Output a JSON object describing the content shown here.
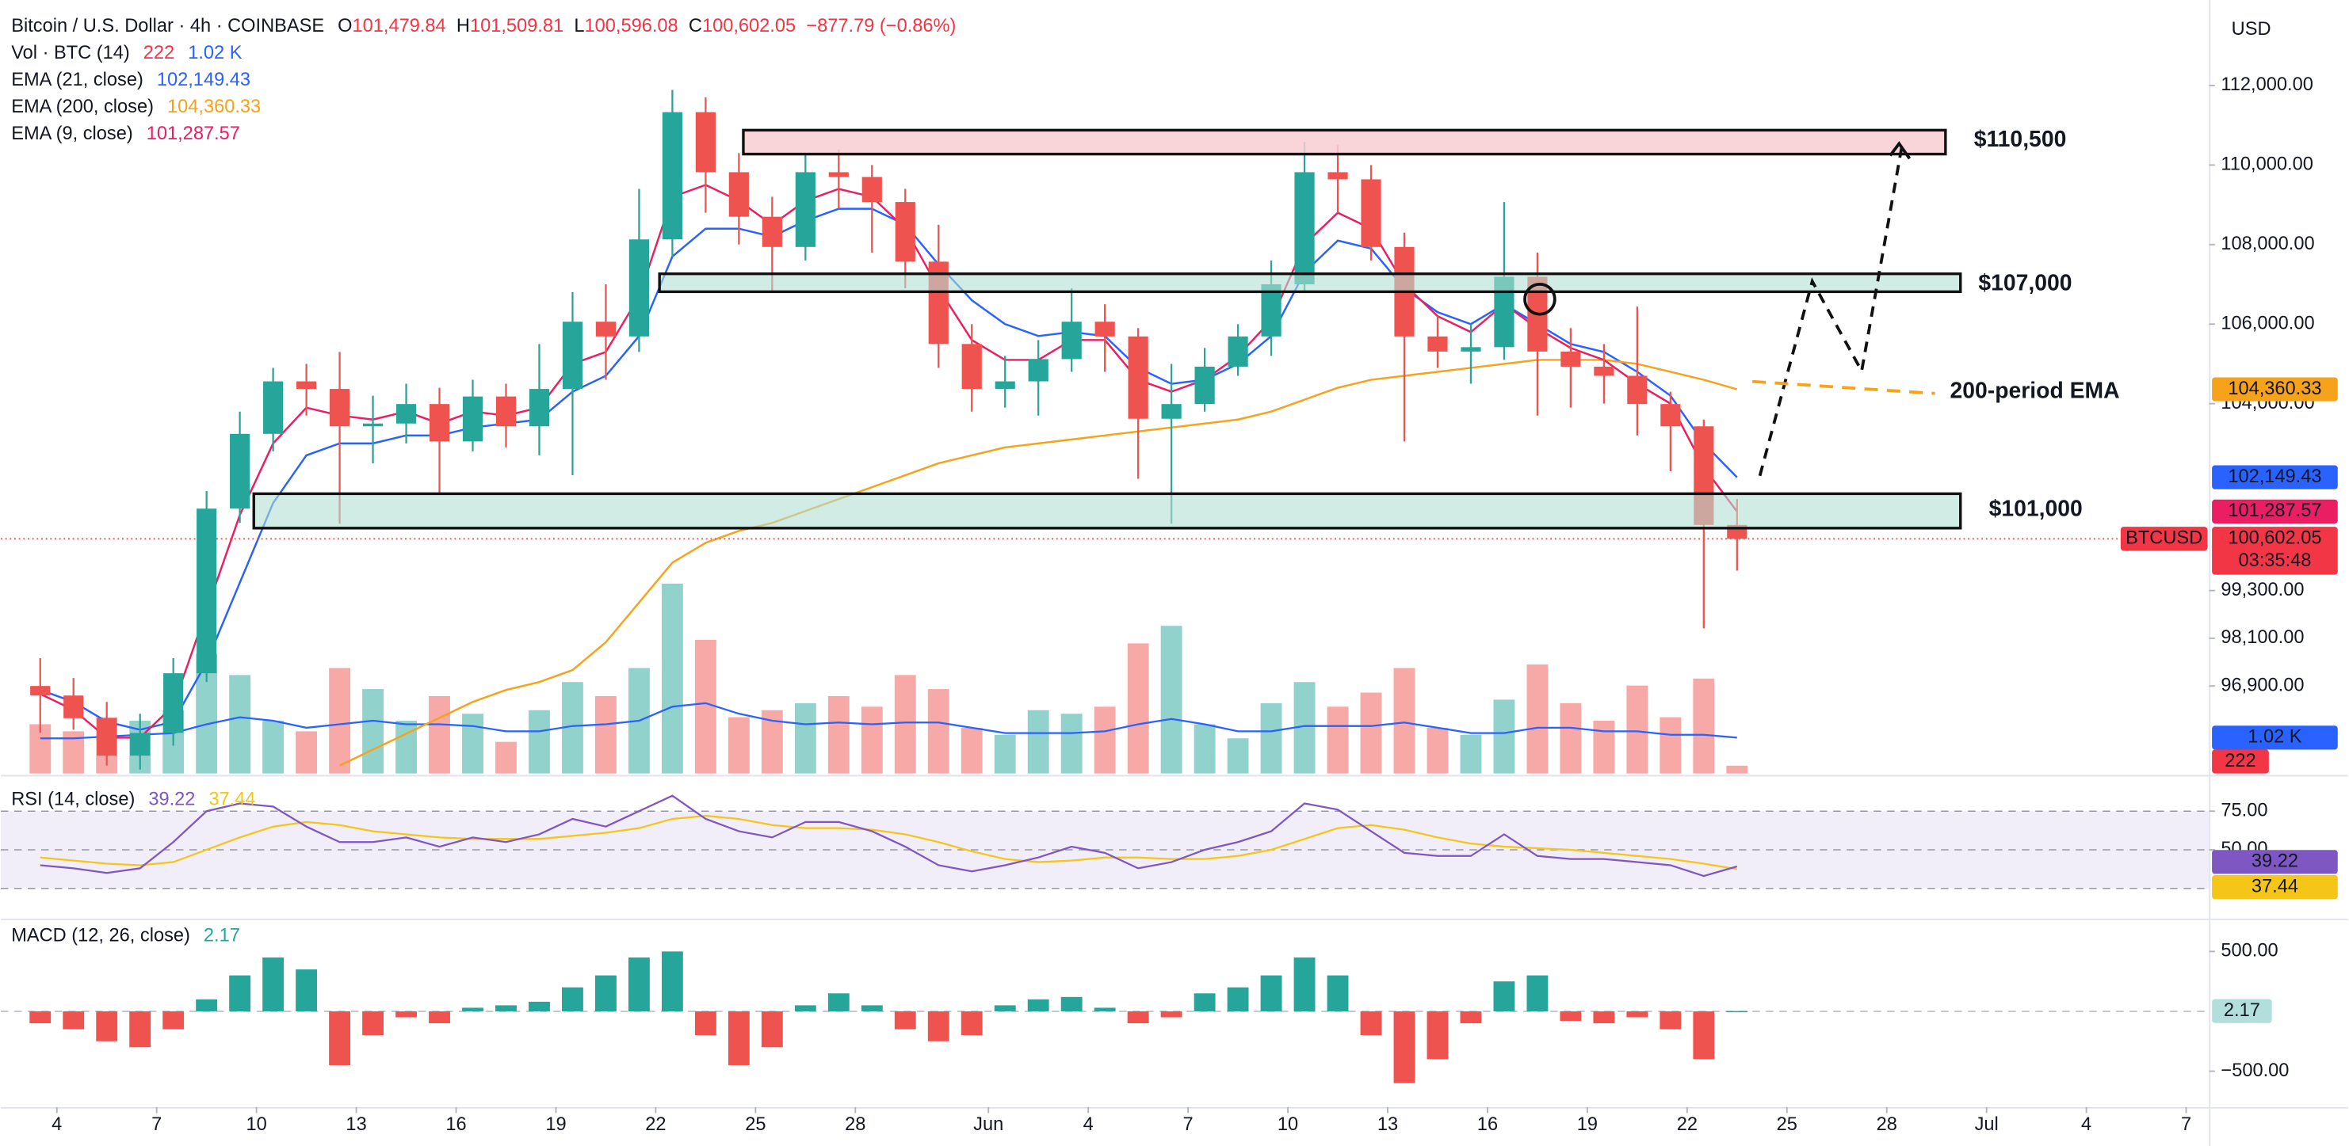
{
  "chart_data": {
    "type": "candlestick",
    "title": "Bitcoin / U.S. Dollar · 4h · COINBASE",
    "ohlc": [
      {
        "label": "O",
        "text": "101,479.84"
      },
      {
        "label": "H",
        "text": "101,509.81"
      },
      {
        "label": "L",
        "text": "100,596.08"
      },
      {
        "label": "C",
        "text": "100,602.05"
      }
    ],
    "change": "−877.79 (−0.86%)",
    "currency": "USD",
    "symbol": "BTCUSD",
    "last_label": "100,602.05",
    "countdown": "03:35:48",
    "up_color": "#26a69a",
    "down_color": "#ef5350",
    "xlim": [
      "May 2",
      "Jul 8"
    ],
    "xticks": [
      {
        "value": "May 4",
        "label": "4"
      },
      {
        "value": "May 7",
        "label": "7"
      },
      {
        "value": "May 10",
        "label": "10"
      },
      {
        "value": "May 13",
        "label": "13"
      },
      {
        "value": "May 16",
        "label": "16"
      },
      {
        "value": "May 19",
        "label": "19"
      },
      {
        "value": "May 22",
        "label": "22"
      },
      {
        "value": "May 25",
        "label": "25"
      },
      {
        "value": "May 28",
        "label": "28"
      },
      {
        "value": "Jun 1",
        "label": "Jun"
      },
      {
        "value": "Jun 4",
        "label": "4"
      },
      {
        "value": "Jun 7",
        "label": "7"
      },
      {
        "value": "Jun 10",
        "label": "10"
      },
      {
        "value": "Jun 13",
        "label": "13"
      },
      {
        "value": "Jun 16",
        "label": "16"
      },
      {
        "value": "Jun 19",
        "label": "19"
      },
      {
        "value": "Jun 22",
        "label": "22"
      },
      {
        "value": "Jun 25",
        "label": "25"
      },
      {
        "value": "Jun 28",
        "label": "28"
      },
      {
        "value": "Jul 1",
        "label": "Jul"
      },
      {
        "value": "Jul 4",
        "label": "4"
      },
      {
        "value": "Jul 7",
        "label": "7"
      }
    ],
    "ylim": [
      94700,
      114150
    ],
    "yticks": [
      {
        "value": 112000,
        "label": "112,000.00"
      },
      {
        "value": 110000,
        "label": "110,000.00"
      },
      {
        "value": 108000,
        "label": "108,000.00"
      },
      {
        "value": 106000,
        "label": "106,000.00"
      },
      {
        "value": 104000,
        "label": "104,000.00"
      },
      {
        "value": 99300,
        "label": "99,300.00"
      },
      {
        "value": 98100,
        "label": "98,100.00"
      },
      {
        "value": 96900,
        "label": "96,900.00"
      }
    ],
    "x": [
      "May 3",
      "May 4",
      "May 5",
      "May 6",
      "May 7",
      "May 8",
      "May 9",
      "May 10",
      "May 11",
      "May 12",
      "May 13",
      "May 14",
      "May 15",
      "May 16",
      "May 17",
      "May 18",
      "May 19",
      "May 20",
      "May 21",
      "May 22",
      "May 23",
      "May 24",
      "May 25",
      "May 26",
      "May 27",
      "May 28",
      "May 29",
      "May 30",
      "May 31",
      "Jun 1",
      "Jun 2",
      "Jun 3",
      "Jun 4",
      "Jun 5",
      "Jun 6",
      "Jun 7",
      "Jun 8",
      "Jun 9",
      "Jun 10",
      "Jun 11",
      "Jun 12",
      "Jun 13",
      "Jun 14",
      "Jun 15",
      "Jun 16",
      "Jun 17",
      "Jun 18",
      "Jun 19",
      "Jun 20",
      "Jun 21",
      "Jun 22",
      "Jun 23"
    ],
    "open": [
      96900,
      96660,
      96090,
      95150,
      95720,
      97220,
      101360,
      103240,
      104560,
      104370,
      103430,
      103500,
      103990,
      103050,
      104180,
      103430,
      104370,
      106060,
      105690,
      108130,
      111330,
      109820,
      108700,
      107940,
      109820,
      109700,
      109070,
      107570,
      105500,
      104370,
      104560,
      105120,
      106060,
      105690,
      103620,
      103990,
      104930,
      105690,
      107000,
      109820,
      109640,
      107940,
      105690,
      105310,
      105420,
      107190,
      105310,
      104930,
      104700,
      103990,
      103430,
      100950
    ],
    "high": [
      97600,
      97100,
      96500,
      96200,
      97600,
      101800,
      103800,
      104900,
      105000,
      105300,
      104200,
      104500,
      104400,
      104600,
      104500,
      105500,
      106800,
      107000,
      109400,
      111890,
      111700,
      110300,
      109200,
      110300,
      110390,
      110000,
      109400,
      108500,
      106000,
      105200,
      105600,
      106900,
      106500,
      105900,
      105000,
      105400,
      106000,
      107600,
      110580,
      110500,
      110000,
      108300,
      106200,
      106000,
      109070,
      107800,
      105900,
      105500,
      106440,
      104300,
      103600,
      101600
    ],
    "low": [
      95720,
      95800,
      94900,
      94800,
      95400,
      97000,
      101000,
      102800,
      103700,
      100980,
      102500,
      103000,
      101740,
      102800,
      102900,
      102700,
      102200,
      104600,
      105300,
      107700,
      108800,
      108000,
      106800,
      107600,
      108900,
      107800,
      106900,
      104900,
      103800,
      103900,
      103700,
      104800,
      104800,
      102110,
      100980,
      103800,
      104700,
      105200,
      106800,
      108800,
      107600,
      103050,
      104900,
      104500,
      105100,
      103700,
      103900,
      104000,
      103200,
      102300,
      98350,
      99800
    ],
    "close": [
      96660,
      96090,
      95150,
      95720,
      97220,
      101360,
      103240,
      104560,
      104370,
      103430,
      103500,
      103990,
      103050,
      104180,
      103430,
      104370,
      106060,
      105690,
      108130,
      111330,
      109820,
      108700,
      107940,
      109820,
      109700,
      109070,
      107570,
      105500,
      104370,
      104560,
      105120,
      106060,
      105690,
      103620,
      103990,
      104930,
      105690,
      107000,
      109820,
      109640,
      107940,
      105690,
      105310,
      105420,
      107190,
      105310,
      104930,
      104700,
      103990,
      103430,
      100950,
      100602.05
    ],
    "overlays": [
      {
        "name": "EMA (21, close)",
        "color": "#2962ff",
        "last_label": "102,149.43",
        "values": [
          96800,
          96500,
          96000,
          95800,
          96000,
          97500,
          99500,
          101500,
          102700,
          103000,
          103000,
          103200,
          103200,
          103400,
          103500,
          103600,
          104300,
          104700,
          105700,
          107700,
          108400,
          108400,
          108200,
          108600,
          108900,
          108900,
          108500,
          107500,
          106600,
          106000,
          105700,
          105800,
          105700,
          104900,
          104500,
          104600,
          105000,
          105700,
          107300,
          108100,
          107900,
          106900,
          106300,
          106000,
          106500,
          106000,
          105500,
          105300,
          104800,
          104200,
          103000,
          102149.43
        ]
      },
      {
        "name": "EMA (200, close)",
        "color": "#f7a21b",
        "last_label": "104,360.33",
        "values": [
          null,
          null,
          null,
          null,
          null,
          null,
          null,
          null,
          null,
          94900,
          95300,
          95700,
          96100,
          96500,
          96800,
          97000,
          97300,
          98000,
          99000,
          100000,
          100500,
          100800,
          101000,
          101300,
          101600,
          101900,
          102200,
          102500,
          102700,
          102900,
          103000,
          103100,
          103200,
          103300,
          103400,
          103500,
          103600,
          103800,
          104100,
          104400,
          104600,
          104700,
          104800,
          104900,
          105000,
          105100,
          105100,
          105100,
          105000,
          104800,
          104600,
          104360.33
        ]
      },
      {
        "name": "EMA (9, close)",
        "color": "#e91e63",
        "last_label": "101,287.57",
        "values": [
          96700,
          96300,
          95600,
          95600,
          96400,
          98800,
          101200,
          103000,
          103900,
          103700,
          103600,
          103800,
          103500,
          103800,
          103700,
          103900,
          105000,
          105300,
          106700,
          109200,
          109500,
          109100,
          108500,
          109100,
          109400,
          109200,
          108400,
          106900,
          105600,
          105100,
          105100,
          105600,
          105600,
          104600,
          104300,
          104600,
          105200,
          106100,
          108000,
          108800,
          108400,
          107000,
          106200,
          105800,
          106500,
          105900,
          105400,
          105100,
          104500,
          104000,
          102400,
          101287.57
        ]
      }
    ],
    "volume": {
      "name": "Vol · BTC (14)",
      "ylim": [
        0,
        22000
      ],
      "up_color": "rgba(38,166,154,0.5)",
      "down_color": "rgba(239,83,80,0.5)",
      "values": [
        1400,
        1200,
        1600,
        1500,
        1800,
        3400,
        2800,
        1500,
        1200,
        3000,
        2400,
        1500,
        2200,
        1700,
        900,
        1800,
        2600,
        2200,
        3000,
        5400,
        3800,
        1600,
        1800,
        2000,
        2200,
        1900,
        2800,
        2400,
        1300,
        1100,
        1800,
        1700,
        1900,
        3700,
        4200,
        1400,
        1000,
        2000,
        2600,
        1900,
        2300,
        3000,
        1300,
        1100,
        2100,
        3100,
        2000,
        1500,
        2500,
        1600,
        2700,
        222
      ],
      "ma_color": "#2962ff",
      "ma_label": "1.02 K",
      "ma": [
        1000,
        1000,
        1050,
        1100,
        1150,
        1400,
        1600,
        1500,
        1300,
        1400,
        1500,
        1400,
        1400,
        1350,
        1200,
        1200,
        1350,
        1400,
        1500,
        1900,
        2000,
        1700,
        1500,
        1400,
        1450,
        1400,
        1450,
        1450,
        1300,
        1150,
        1150,
        1150,
        1200,
        1400,
        1550,
        1400,
        1200,
        1200,
        1350,
        1350,
        1350,
        1450,
        1300,
        1150,
        1150,
        1300,
        1300,
        1200,
        1200,
        1100,
        1100,
        1020
      ]
    },
    "rsi": {
      "name": "RSI (14, close)",
      "color": "#7e57c2",
      "ma_color": "#f5c518",
      "ylim": [
        6.4,
        96.5
      ],
      "yticks": [
        {
          "value": 75,
          "label": "75.00"
        },
        {
          "value": 50,
          "label": "50.00"
        }
      ],
      "levels": [
        75,
        50,
        25
      ],
      "values": [
        40,
        38,
        35,
        38,
        55,
        75,
        80,
        78,
        65,
        55,
        55,
        58,
        52,
        58,
        55,
        60,
        70,
        65,
        75,
        85,
        70,
        62,
        58,
        68,
        68,
        62,
        52,
        40,
        36,
        40,
        45,
        52,
        48,
        38,
        42,
        50,
        55,
        62,
        80,
        76,
        62,
        48,
        46,
        46,
        60,
        46,
        44,
        44,
        42,
        40,
        33,
        39.22
      ],
      "ma": [
        45,
        43,
        41,
        40,
        42,
        50,
        58,
        65,
        68,
        66,
        62,
        60,
        58,
        57,
        57,
        57,
        59,
        61,
        64,
        70,
        72,
        70,
        66,
        64,
        64,
        63,
        60,
        55,
        49,
        44,
        42,
        43,
        45,
        45,
        44,
        44,
        46,
        50,
        57,
        64,
        66,
        63,
        58,
        54,
        52,
        51,
        50,
        48,
        46,
        44,
        41,
        37.44
      ]
    },
    "macd": {
      "name": "MACD (12, 26, close)",
      "up_color": "#26a69a",
      "down_color": "#ef5350",
      "ylim": [
        -800,
        762
      ],
      "yticks": [
        {
          "value": 500,
          "label": "500.00"
        },
        {
          "value": -500,
          "label": "−500.00"
        }
      ],
      "levels": [
        0
      ],
      "values": [
        -100,
        -150,
        -250,
        -300,
        -150,
        100,
        300,
        450,
        350,
        -450,
        -200,
        -50,
        -100,
        30,
        50,
        80,
        200,
        300,
        450,
        500,
        -200,
        -450,
        -300,
        50,
        150,
        50,
        -150,
        -250,
        -200,
        50,
        100,
        120,
        30,
        -100,
        -50,
        150,
        200,
        300,
        450,
        300,
        -200,
        -600,
        -400,
        -100,
        250,
        300,
        -80,
        -100,
        -50,
        -150,
        -400,
        2.17
      ]
    },
    "annotations": [
      {
        "text": "$110,500"
      },
      {
        "text": "$107,000"
      },
      {
        "text": "$101,000"
      },
      {
        "text": "200-period EMA"
      }
    ]
  }
}
